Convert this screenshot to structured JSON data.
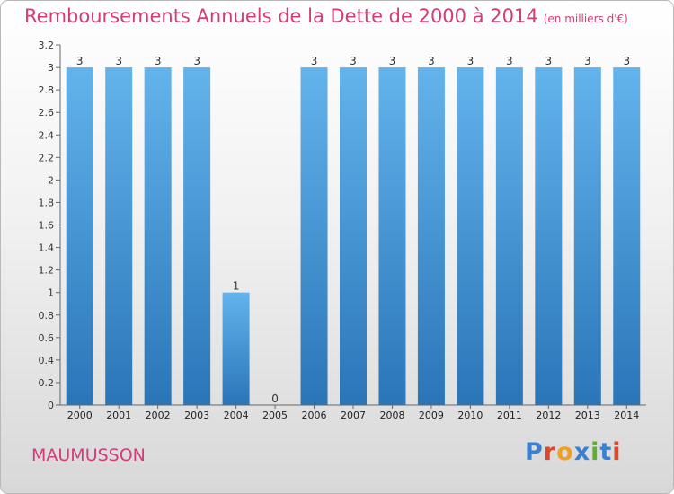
{
  "chart_data": {
    "type": "bar",
    "title": "Remboursements Annuels de la Dette de 2000 à 2014",
    "subtitle": "(en milliers d'€)",
    "categories": [
      "2000",
      "2001",
      "2002",
      "2003",
      "2004",
      "2005",
      "2006",
      "2007",
      "2008",
      "2009",
      "2010",
      "2011",
      "2012",
      "2013",
      "2014"
    ],
    "values": [
      3,
      3,
      3,
      3,
      1,
      0,
      3,
      3,
      3,
      3,
      3,
      3,
      3,
      3,
      3
    ],
    "data_labels": [
      "3",
      "3",
      "3",
      "3",
      "1",
      "0",
      "3",
      "3",
      "3",
      "3",
      "3",
      "3",
      "3",
      "3",
      "3"
    ],
    "y_ticks": [
      "0",
      "0.2",
      "0.4",
      "0.6",
      "0.8",
      "1",
      "1.2",
      "1.4",
      "1.6",
      "1.8",
      "2",
      "2.2",
      "2.4",
      "2.6",
      "2.8",
      "3",
      "3.2"
    ],
    "ylim": [
      0,
      3.2
    ],
    "bar_color": "#3a8fd6",
    "grid": false
  },
  "location": "MAUMUSSON",
  "logo": {
    "letters": [
      "P",
      "r",
      "o",
      "x",
      "i",
      "t",
      "i"
    ],
    "colors": [
      "#3a7fd0",
      "#e0462a",
      "#f0a020",
      "#3a7fd0",
      "#5cb030",
      "#3a7fd0",
      "#e0462a"
    ]
  },
  "colors": {
    "title": "#d33d77",
    "bar_light": "#63b3ec",
    "bar_dark": "#2a75b8"
  }
}
